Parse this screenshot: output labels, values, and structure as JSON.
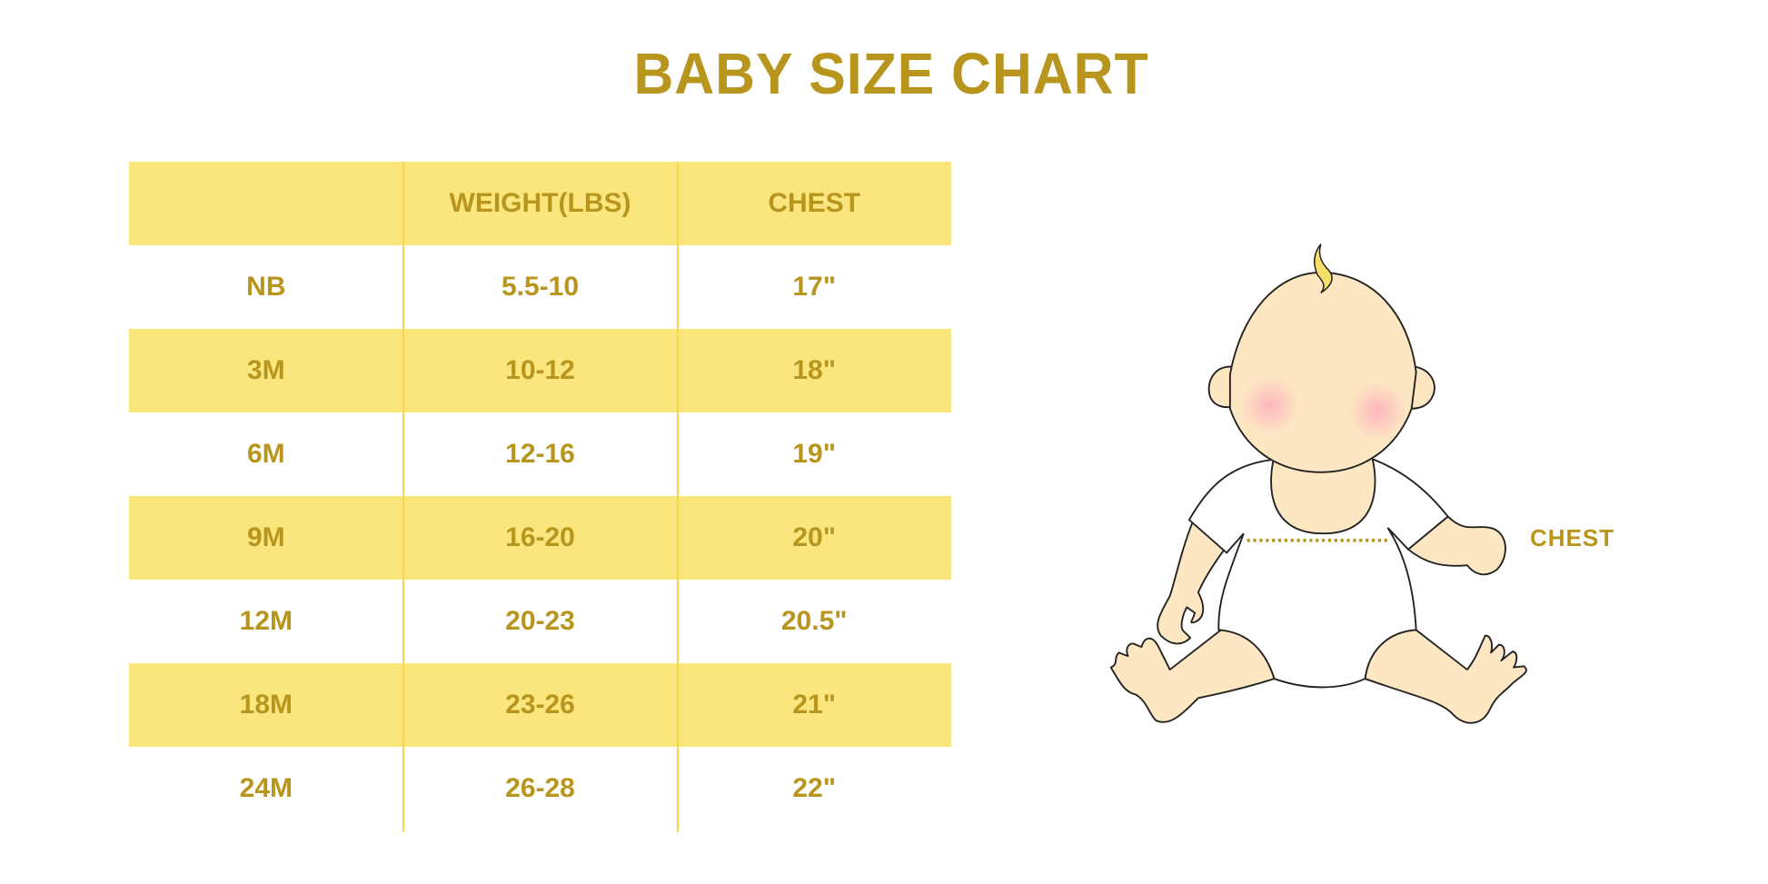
{
  "title": "BABY SIZE CHART",
  "colors": {
    "text": "#B8961E",
    "row_highlight": "#FBE57D",
    "divider": "#F7D846",
    "skin": "#FDE7C2"
  },
  "table": {
    "headers": [
      "",
      "WEIGHT(LBS)",
      "CHEST"
    ],
    "rows": [
      [
        "NB",
        "5.5-10",
        "17\""
      ],
      [
        "3M",
        "10-12",
        "18\""
      ],
      [
        "6M",
        "12-16",
        "19\""
      ],
      [
        "9M",
        "16-20",
        "20\""
      ],
      [
        "12M",
        "20-23",
        "20.5\""
      ],
      [
        "18M",
        "23-26",
        "21\""
      ],
      [
        "24M",
        "26-28",
        "22\""
      ]
    ]
  },
  "illustration": {
    "chest_label": "CHEST"
  }
}
